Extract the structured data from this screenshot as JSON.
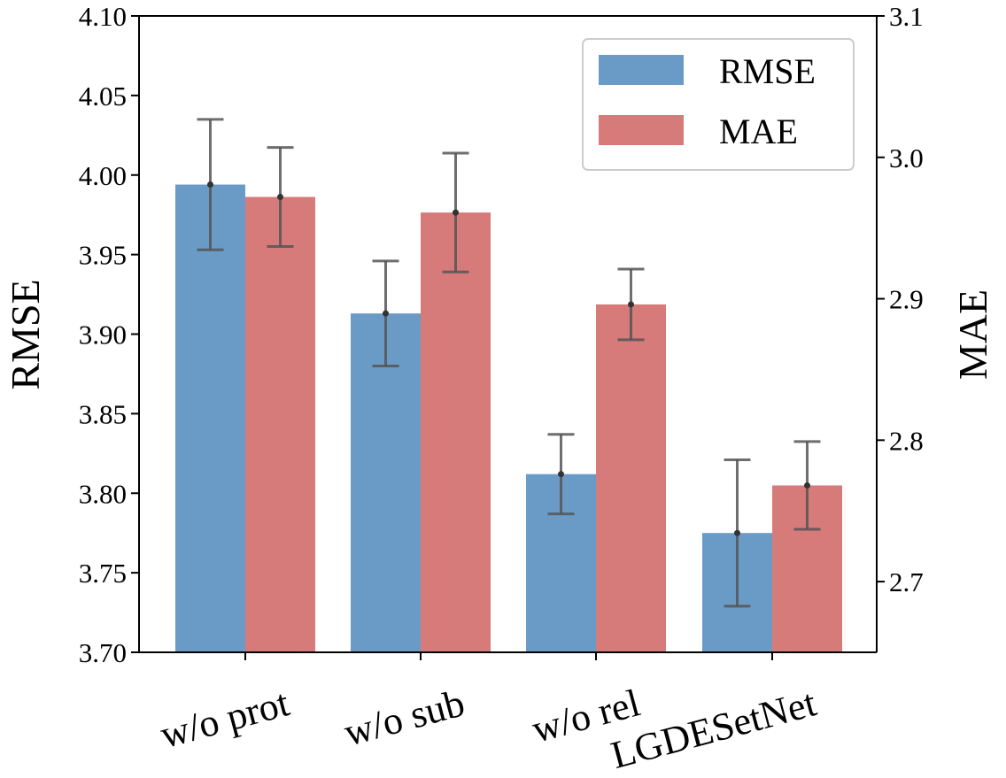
{
  "chart_data": {
    "type": "bar",
    "title": "",
    "categories": [
      "w/o prot",
      "w/o sub",
      "w/o rel",
      "LGDESetNet"
    ],
    "xlabel": "",
    "ylabel": "RMSE",
    "ylabel_right": "MAE",
    "ylim": [
      3.7,
      4.1
    ],
    "ylim_right": [
      2.65,
      3.1
    ],
    "yticks": [
      "3.70",
      "3.75",
      "3.80",
      "3.85",
      "3.90",
      "3.95",
      "4.00",
      "4.05",
      "4.10"
    ],
    "yticks_right": [
      "2.7",
      "2.8",
      "2.9",
      "3.0",
      "3.1"
    ],
    "grid": false,
    "legend_position": "top-right",
    "series": [
      {
        "name": "RMSE",
        "axis": "left",
        "color": "#6a9bc6",
        "values": [
          3.994,
          3.913,
          3.812,
          3.775
        ],
        "errors": [
          0.041,
          0.033,
          0.025,
          0.046
        ]
      },
      {
        "name": "MAE",
        "axis": "right",
        "color": "#d67a7a",
        "values": [
          2.972,
          2.961,
          2.896,
          2.768
        ],
        "errors": [
          0.035,
          0.042,
          0.025,
          0.031
        ]
      }
    ],
    "error_bar_color": "#555555"
  }
}
